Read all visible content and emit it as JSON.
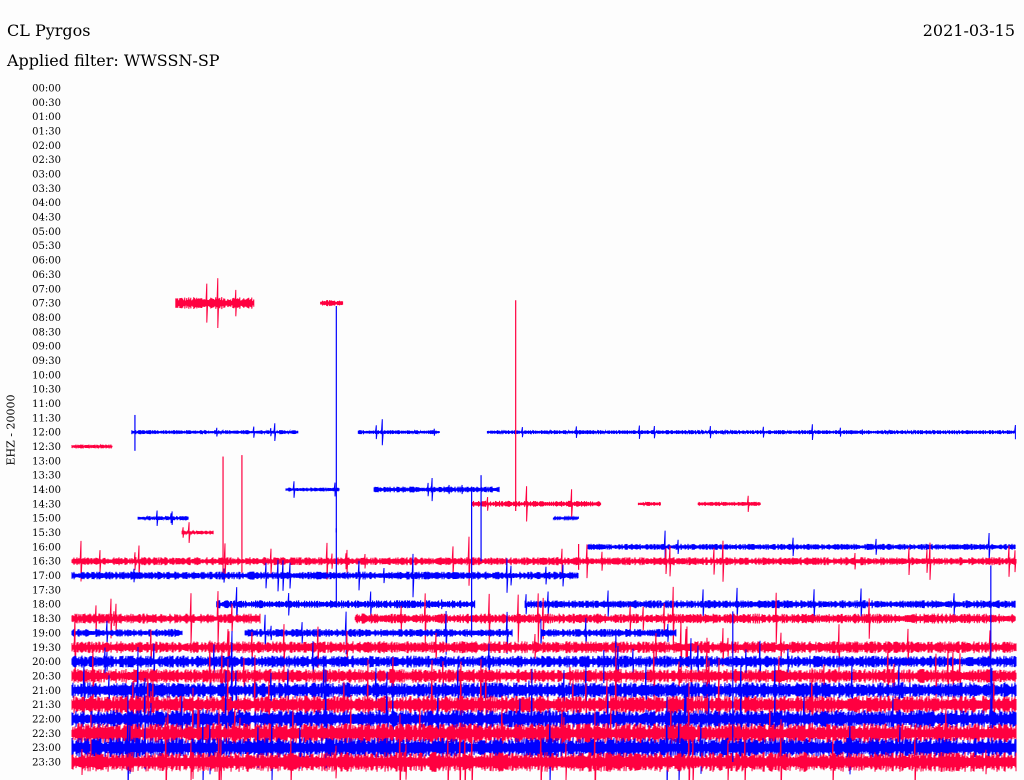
{
  "header": {
    "station": "CL Pyrgos",
    "date": "2021-03-15",
    "filter": "Applied filter: WWSSN-SP"
  },
  "chart_data": {
    "type": "line",
    "title": "CL Pyrgos",
    "subtitle": "Applied filter: WWSSN-SP",
    "date": "2021-03-15",
    "ylabel": "EHZ - 20000",
    "xlabel": "",
    "grid": false,
    "time_ticks": [
      "00:00",
      "00:30",
      "01:00",
      "01:30",
      "02:00",
      "02:30",
      "03:00",
      "03:30",
      "04:00",
      "04:30",
      "05:00",
      "05:30",
      "06:00",
      "06:30",
      "07:00",
      "07:30",
      "08:00",
      "08:30",
      "09:00",
      "09:30",
      "10:00",
      "10:30",
      "11:00",
      "11:30",
      "12:00",
      "12:30",
      "13:00",
      "13:30",
      "14:00",
      "14:30",
      "15:00",
      "15:30",
      "16:00",
      "16:30",
      "17:00",
      "17:30",
      "18:00",
      "18:30",
      "19:00",
      "19:30",
      "20:00",
      "20:30",
      "21:00",
      "21:30",
      "22:00",
      "22:30",
      "23:00",
      "23:30"
    ],
    "colors": {
      "odd_rows": "#ff0040",
      "even_rows": "#0000ff"
    },
    "x_range_minutes": [
      0,
      30
    ],
    "traces": [
      {
        "row": "07:30",
        "color": "red",
        "segments": [
          [
            3.3,
            5.8,
            6
          ],
          [
            7.9,
            8.6,
            3
          ]
        ]
      },
      {
        "row": "12:00",
        "color": "blue",
        "segments": [
          [
            1.9,
            7.2,
            2
          ],
          [
            9.1,
            11.7,
            2
          ],
          [
            13.2,
            30,
            2
          ]
        ]
      },
      {
        "row": "12:30",
        "color": "red",
        "segments": [
          [
            0,
            1.3,
            2
          ]
        ]
      },
      {
        "row": "14:00",
        "color": "blue",
        "segments": [
          [
            6.8,
            8.5,
            2
          ],
          [
            9.6,
            13.6,
            3
          ]
        ]
      },
      {
        "row": "14:30",
        "color": "red",
        "segments": [
          [
            12.7,
            16.8,
            3
          ],
          [
            18.0,
            18.7,
            2
          ],
          [
            19.9,
            21.9,
            2
          ]
        ]
      },
      {
        "row": "15:00",
        "color": "blue",
        "segments": [
          [
            2.1,
            3.7,
            2
          ],
          [
            15.3,
            16.1,
            1
          ]
        ]
      },
      {
        "row": "15:30",
        "color": "red",
        "segments": [
          [
            3.5,
            4.5,
            2
          ]
        ]
      },
      {
        "row": "16:00",
        "color": "blue",
        "segments": [
          [
            16.4,
            30,
            3
          ]
        ]
      },
      {
        "row": "16:30",
        "color": "red",
        "segments": [
          [
            0,
            30,
            4
          ]
        ]
      },
      {
        "row": "17:00",
        "color": "blue",
        "segments": [
          [
            0,
            16.1,
            4
          ]
        ]
      },
      {
        "row": "18:00",
        "color": "blue",
        "segments": [
          [
            4.6,
            12.8,
            4
          ],
          [
            14.4,
            30,
            4
          ]
        ]
      },
      {
        "row": "18:30",
        "color": "red",
        "segments": [
          [
            0,
            6.0,
            5
          ],
          [
            9.0,
            30,
            5
          ]
        ]
      },
      {
        "row": "19:00",
        "color": "blue",
        "segments": [
          [
            0,
            3.5,
            4
          ],
          [
            5.5,
            14.0,
            4
          ],
          [
            14.9,
            19.2,
            4
          ]
        ]
      },
      {
        "row": "19:30",
        "color": "red",
        "segments": [
          [
            0,
            30,
            6
          ]
        ]
      },
      {
        "row": "20:00",
        "color": "blue",
        "segments": [
          [
            0,
            30,
            6
          ]
        ]
      },
      {
        "row": "20:30",
        "color": "red",
        "segments": [
          [
            0,
            30,
            7
          ]
        ]
      },
      {
        "row": "21:00",
        "color": "blue",
        "segments": [
          [
            0,
            30,
            8
          ]
        ]
      },
      {
        "row": "21:30",
        "color": "red",
        "segments": [
          [
            0,
            30,
            9
          ]
        ]
      },
      {
        "row": "22:00",
        "color": "blue",
        "segments": [
          [
            0,
            30,
            9
          ]
        ]
      },
      {
        "row": "22:30",
        "color": "red",
        "segments": [
          [
            0,
            30,
            10
          ]
        ]
      },
      {
        "row": "23:00",
        "color": "blue",
        "segments": [
          [
            0,
            30,
            10
          ]
        ]
      },
      {
        "row": "23:30",
        "color": "red",
        "segments": [
          [
            0,
            30,
            10
          ]
        ]
      }
    ],
    "spikes": [
      {
        "row": "12:00",
        "color": "blue",
        "minute": 8.4,
        "up_rows": 8.8,
        "down_rows": 7.0
      },
      {
        "row": "12:00",
        "color": "blue",
        "minute": 2.0,
        "up_rows": 1.2,
        "down_rows": 1.3
      },
      {
        "row": "12:30",
        "color": "red",
        "minute": 14.1,
        "up_rows": 10.2,
        "down_rows": 4.5
      },
      {
        "row": "15:30",
        "color": "red",
        "minute": 4.8,
        "up_rows": 5.3,
        "down_rows": 2.8
      },
      {
        "row": "15:30",
        "color": "red",
        "minute": 5.4,
        "up_rows": 5.4,
        "down_rows": 2.8
      },
      {
        "row": "14:00",
        "color": "blue",
        "minute": 13.0,
        "up_rows": 1.0,
        "down_rows": 5.0
      },
      {
        "row": "17:00",
        "color": "blue",
        "minute": 8.4,
        "up_rows": 3.3,
        "down_rows": 2.2
      },
      {
        "row": "14:00",
        "color": "blue",
        "minute": 12.7,
        "up_rows": 0.2,
        "down_rows": 10.3
      },
      {
        "row": "20:00",
        "color": "blue",
        "minute": 21.0,
        "up_rows": 3.5,
        "down_rows": 7.0
      },
      {
        "row": "20:00",
        "color": "blue",
        "minute": 29.2,
        "up_rows": 6.7,
        "down_rows": 4.0
      },
      {
        "row": "20:00",
        "color": "blue",
        "minute": 16.9,
        "up_rows": 0.8,
        "down_rows": 1.5
      },
      {
        "row": "22:30",
        "color": "red",
        "minute": 0.6,
        "up_rows": 1.3,
        "down_rows": 1.7
      },
      {
        "row": "16:30",
        "color": "red",
        "minute": 16.1,
        "up_rows": 1.2,
        "down_rows": 0.6
      }
    ]
  }
}
